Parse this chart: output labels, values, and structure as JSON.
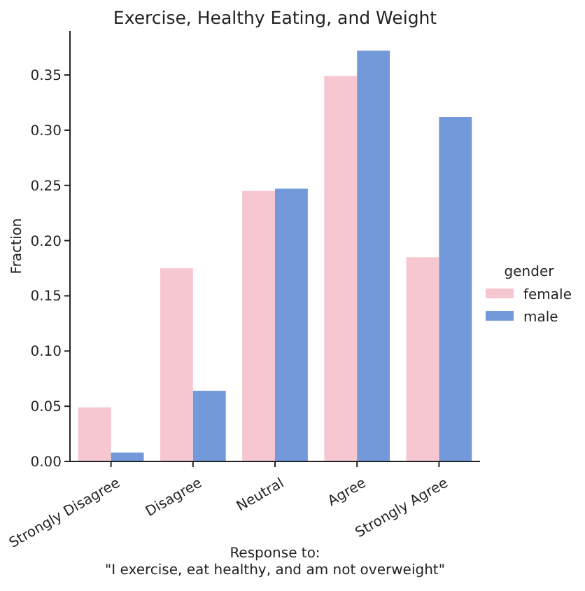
{
  "chart_data": {
    "type": "bar",
    "title": "Exercise, Healthy Eating, and Weight",
    "xlabel": "Response to:\n\"I exercise, eat healthy, and am not overweight\"",
    "ylabel": "Fraction",
    "legend_title": "gender",
    "legend": "right",
    "categories": [
      "Strongly Disagree",
      "Disagree",
      "Neutral",
      "Agree",
      "Strongly Agree"
    ],
    "series": [
      {
        "name": "female",
        "color": "#f6c7d0",
        "values": [
          0.049,
          0.175,
          0.245,
          0.349,
          0.185
        ]
      },
      {
        "name": "male",
        "color": "#7499db",
        "values": [
          0.008,
          0.064,
          0.247,
          0.372,
          0.312
        ]
      }
    ],
    "ylim": [
      0,
      0.39
    ],
    "yticks": [
      {
        "value": 0,
        "label": "0.00"
      },
      {
        "value": 0.05,
        "label": "0.05"
      },
      {
        "value": 0.1,
        "label": "0.10"
      },
      {
        "value": 0.15,
        "label": "0.15"
      },
      {
        "value": 0.2,
        "label": "0.20"
      },
      {
        "value": 0.25,
        "label": "0.25"
      },
      {
        "value": 0.3,
        "label": "0.30"
      },
      {
        "value": 0.35,
        "label": "0.35"
      }
    ],
    "grid": false
  }
}
